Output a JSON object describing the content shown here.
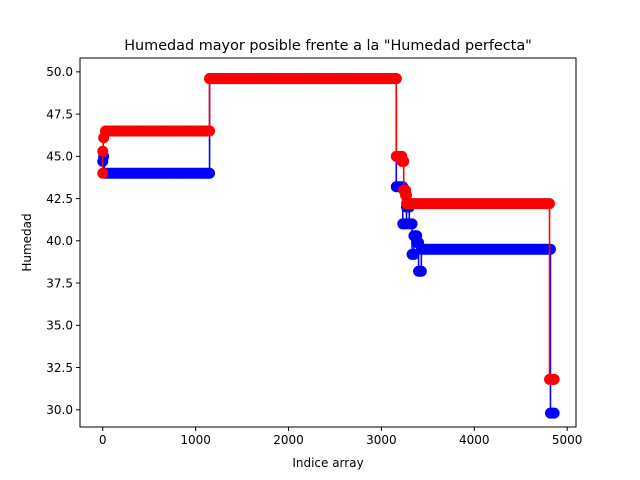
{
  "chart_data": {
    "type": "line",
    "title": "Humedad mayor posible frente a la \"Humedad perfecta\"",
    "xlabel": "Indice array",
    "ylabel": "Humedad",
    "xlim": [
      -245,
      5095
    ],
    "ylim": [
      28.98,
      50.82
    ],
    "xticks": [
      0,
      1000,
      2000,
      3000,
      4000,
      5000
    ],
    "xtick_labels": [
      "0",
      "1000",
      "2000",
      "3000",
      "4000",
      "5000"
    ],
    "yticks": [
      30.0,
      32.5,
      35.0,
      37.5,
      40.0,
      42.5,
      45.0,
      47.5,
      50.0
    ],
    "ytick_labels": [
      "30.0",
      "32.5",
      "35.0",
      "37.5",
      "40.0",
      "42.5",
      "45.0",
      "47.5",
      "50.0"
    ],
    "grid": false,
    "marker": "circle",
    "series": [
      {
        "color": "#0000ff",
        "points": [
          [
            0,
            44.7
          ],
          [
            10,
            45.0
          ],
          [
            20,
            44.0
          ],
          [
            1150,
            44.0
          ],
          [
            1150,
            49.6
          ],
          [
            3160,
            49.6
          ],
          [
            3160,
            43.2
          ],
          [
            3230,
            43.2
          ],
          [
            3230,
            41.0
          ],
          [
            3270,
            41.0
          ],
          [
            3270,
            42.0
          ],
          [
            3300,
            42.0
          ],
          [
            3300,
            41.0
          ],
          [
            3330,
            41.0
          ],
          [
            3330,
            39.2
          ],
          [
            3350,
            39.2
          ],
          [
            3350,
            40.3
          ],
          [
            3380,
            40.3
          ],
          [
            3380,
            39.9
          ],
          [
            3400,
            39.9
          ],
          [
            3400,
            38.2
          ],
          [
            3430,
            38.2
          ],
          [
            3430,
            39.5
          ],
          [
            4820,
            39.5
          ],
          [
            4820,
            29.8
          ],
          [
            4860,
            29.8
          ]
        ]
      },
      {
        "color": "#ff0000",
        "points": [
          [
            0,
            44.0
          ],
          [
            0,
            45.3
          ],
          [
            10,
            46.1
          ],
          [
            30,
            46.5
          ],
          [
            1150,
            46.5
          ],
          [
            1150,
            49.6
          ],
          [
            3160,
            49.6
          ],
          [
            3160,
            45.0
          ],
          [
            3220,
            45.0
          ],
          [
            3220,
            44.7
          ],
          [
            3240,
            44.7
          ],
          [
            3240,
            43.0
          ],
          [
            3260,
            43.0
          ],
          [
            3260,
            42.7
          ],
          [
            3270,
            42.7
          ],
          [
            3270,
            42.2
          ],
          [
            4810,
            42.2
          ],
          [
            4810,
            31.8
          ],
          [
            4860,
            31.8
          ]
        ]
      }
    ]
  }
}
